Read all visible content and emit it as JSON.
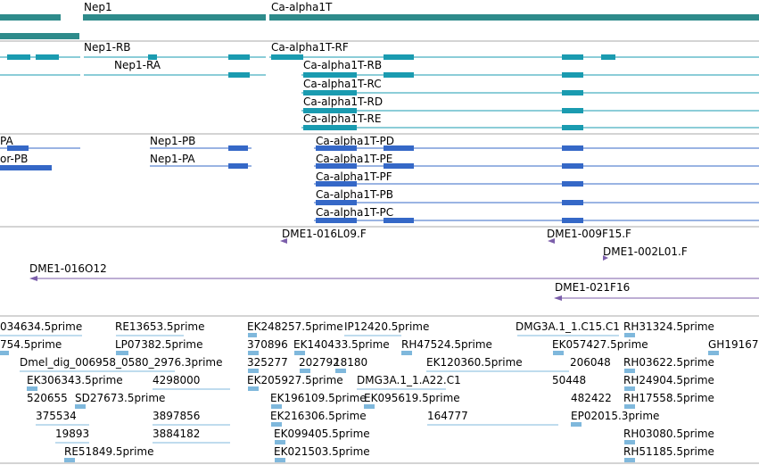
{
  "colors": {
    "gene": "#2e8b8b",
    "transcript_cyan": "#1a9bb0",
    "transcript_blue": "#3568c7",
    "clone": "#7b5eaa",
    "est": "#7fb8dc",
    "divider": "#a9a9a9"
  },
  "tracks": {
    "genes": {
      "labels": [
        "Nep1",
        "Ca-alpha1T"
      ]
    },
    "transcripts_cyan": {
      "labels": [
        "Nep1-RB",
        "Nep1-RA",
        "Ca-alpha1T-RF",
        "Ca-alpha1T-RB",
        "Ca-alpha1T-RC",
        "Ca-alpha1T-RD",
        "Ca-alpha1T-RE"
      ]
    },
    "transcripts_blue": {
      "labels": [
        "PA",
        "or-PB",
        "Nep1-PB",
        "Nep1-PA",
        "Ca-alpha1T-PD",
        "Ca-alpha1T-PE",
        "Ca-alpha1T-PF",
        "Ca-alpha1T-PB",
        "Ca-alpha1T-PC"
      ]
    },
    "clones": {
      "labels": [
        "DME1-016L09.F",
        "DME1-009F15.F",
        "DME1-002L01.F",
        "DME1-016O12",
        "DME1-021F16"
      ]
    },
    "ests": {
      "labels": [
        "034634.5prime",
        "RE13653.5prime",
        "EK248257.5prime",
        "IP12420.5prime",
        "DMG3A.1_1.C15.C1",
        "RH31324.5prime",
        "754.5prime",
        "LP07382.5prime",
        "370896",
        "EK140433.5prime",
        "RH47524.5prime",
        "EK057427.5prime",
        "GH19167",
        "Dmel_dig_006958_0580_2976.3prime",
        "325277",
        "202792",
        "18180",
        "EK120360.5prime",
        "206048",
        "RH03622.5prime",
        "EK306343.5prime",
        "4298000",
        "EK205927.5prime",
        "DMG3A.1_1.A22.C1",
        "50448",
        "RH24904.5prime",
        "520655",
        "SD27673.5prime",
        "EK196109.5prime",
        "EK095619.5prime",
        "482422",
        "RH17558.5prime",
        "375534",
        "3897856",
        "EK216306.5prime",
        "164777",
        "EP02015.3prime",
        "19893",
        "3884182",
        "EK099405.5prime",
        "RH03080.5prime",
        "RE51849.5prime",
        "EK021503.5prime",
        "RH51185.5prime"
      ]
    }
  }
}
